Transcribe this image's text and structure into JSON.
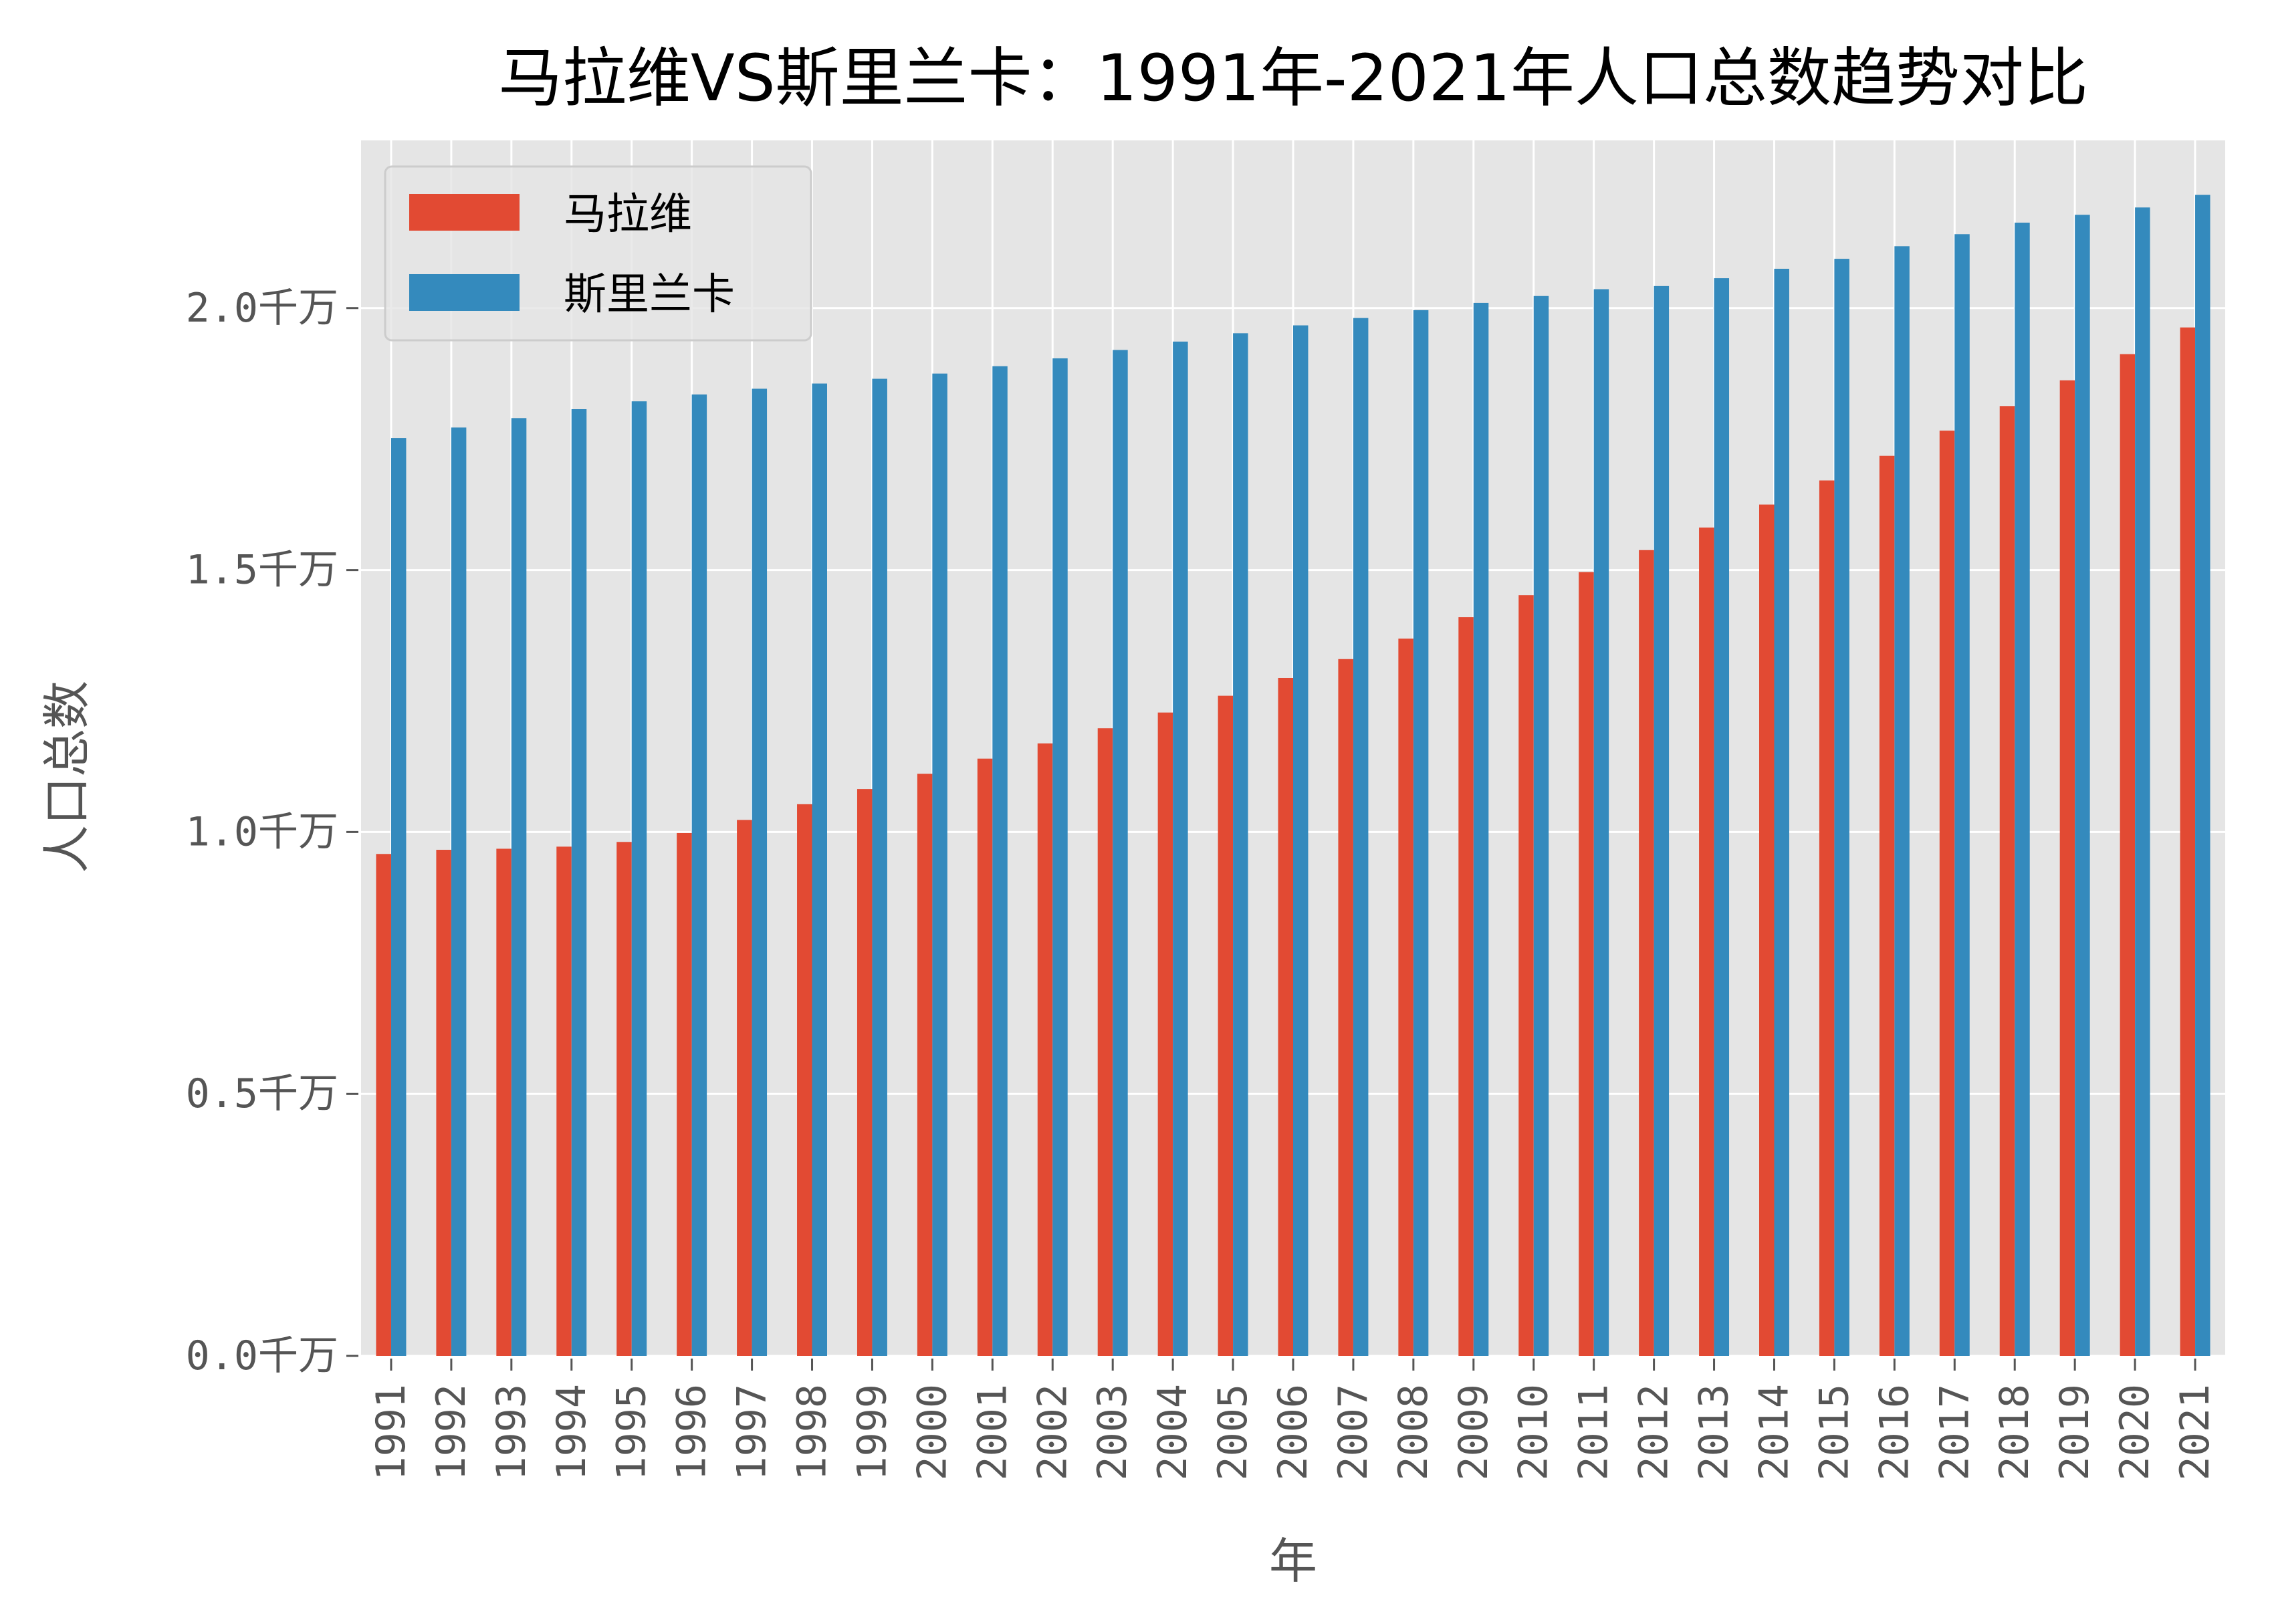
{
  "chart_data": {
    "type": "bar",
    "title": "马拉维VS斯里兰卡：1991年-2021年人口总数趋势对比",
    "xlabel": "年",
    "ylabel": "人口总数",
    "categories": [
      "1991",
      "1992",
      "1993",
      "1994",
      "1995",
      "1996",
      "1997",
      "1998",
      "1999",
      "2000",
      "2001",
      "2002",
      "2003",
      "2004",
      "2005",
      "2006",
      "2007",
      "2008",
      "2009",
      "2010",
      "2011",
      "2012",
      "2013",
      "2014",
      "2015",
      "2016",
      "2017",
      "2018",
      "2019",
      "2020",
      "2021"
    ],
    "series": [
      {
        "name": "马拉维",
        "color": "#E24A33",
        "values": [
          0.958,
          0.966,
          0.968,
          0.972,
          0.981,
          0.998,
          1.023,
          1.053,
          1.082,
          1.111,
          1.14,
          1.169,
          1.198,
          1.228,
          1.26,
          1.294,
          1.33,
          1.369,
          1.41,
          1.452,
          1.496,
          1.538,
          1.581,
          1.625,
          1.671,
          1.718,
          1.766,
          1.813,
          1.862,
          1.912,
          1.963
        ]
      },
      {
        "name": "斯里兰卡",
        "color": "#348ABD",
        "values": [
          1.752,
          1.772,
          1.79,
          1.807,
          1.822,
          1.835,
          1.846,
          1.856,
          1.865,
          1.875,
          1.889,
          1.904,
          1.92,
          1.936,
          1.952,
          1.967,
          1.981,
          1.996,
          2.01,
          2.023,
          2.036,
          2.042,
          2.057,
          2.075,
          2.094,
          2.118,
          2.141,
          2.163,
          2.178,
          2.192,
          2.216
        ]
      }
    ],
    "ylim": [
      0,
      2.32
    ],
    "yticks": [
      0.0,
      0.5,
      1.0,
      1.5,
      2.0
    ],
    "ytick_labels": [
      "0.0千万",
      "0.5千万",
      "1.0千万",
      "1.5千万",
      "2.0千万"
    ],
    "grid": true,
    "legend_position": "top-left",
    "background_color": "#E5E5E5"
  }
}
